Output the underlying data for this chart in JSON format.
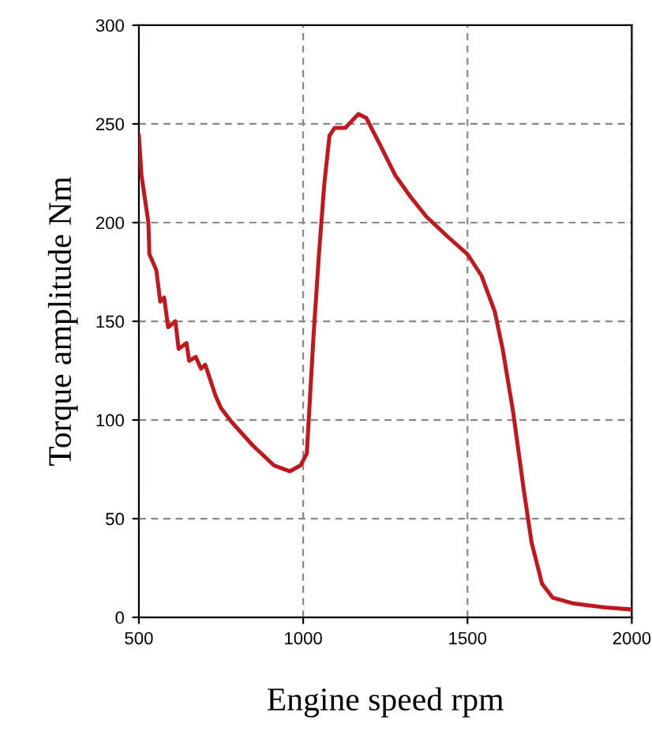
{
  "chart_data": {
    "type": "line",
    "xlabel": "Engine speed rpm",
    "ylabel": "Torque amplitude Nm",
    "series": [
      {
        "color": "#c0181c",
        "x": [
          500,
          508,
          529,
          532,
          553,
          565,
          577,
          589,
          611,
          621,
          645,
          653,
          673,
          689,
          702,
          734,
          750,
          782,
          847,
          911,
          960,
          992,
          1011,
          1032,
          1048,
          1064,
          1080,
          1096,
          1128,
          1168,
          1192,
          1232,
          1280,
          1327,
          1375,
          1439,
          1500,
          1543,
          1583,
          1607,
          1639,
          1671,
          1695,
          1727,
          1759,
          1823,
          1919,
          2000
        ],
        "values": [
          244,
          224,
          200,
          184,
          176,
          160,
          162,
          147,
          150,
          136,
          139,
          130,
          132,
          126,
          128,
          112,
          106,
          99,
          87,
          77,
          74,
          77,
          83,
          144,
          184,
          219,
          244,
          248,
          248,
          255,
          253,
          240,
          224,
          213,
          203,
          193,
          184,
          173,
          155,
          136,
          104,
          65,
          38,
          17,
          10,
          7,
          5,
          4
        ]
      }
    ],
    "xlim": [
      500,
      2000
    ],
    "xticks": [
      500,
      1000,
      1500,
      2000
    ],
    "ylim": [
      0,
      300
    ],
    "yticks": [
      0,
      50,
      100,
      150,
      200,
      250,
      300
    ],
    "grid": true,
    "line_style": "solid",
    "marker": "none"
  }
}
